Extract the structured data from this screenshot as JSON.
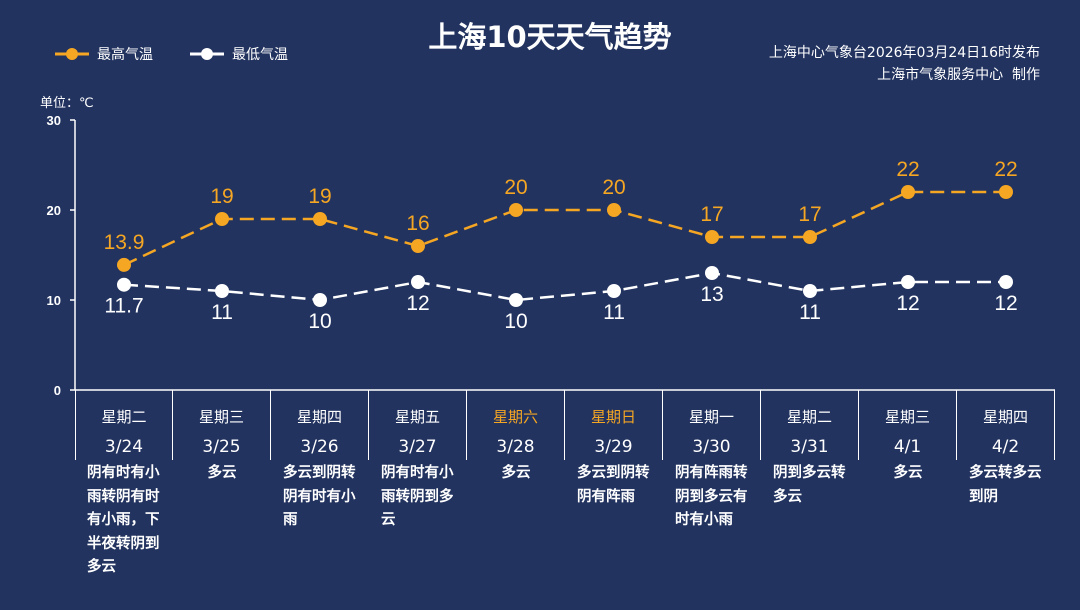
{
  "title": "上海10天天气趋势",
  "source_line1": "上海中心气象台2026年03月24日16时发布",
  "source_line2": "上海市气象服务中心  制作",
  "unit_label": "单位：℃",
  "colors": {
    "background": "#22335f",
    "high": "#f5a623",
    "low": "#ffffff",
    "weekend": "#f5a623"
  },
  "chart_data": {
    "type": "line",
    "title": "上海10天天气趋势",
    "ylim": [
      0,
      30
    ],
    "yticks": [
      0,
      10,
      20,
      30
    ],
    "ylabel": "单位：℃",
    "legend_position": "top-left",
    "grid": false,
    "categories": [
      "3/24",
      "3/25",
      "3/26",
      "3/27",
      "3/28",
      "3/29",
      "3/30",
      "3/31",
      "4/1",
      "4/2"
    ],
    "series": [
      {
        "name": "最高气温",
        "color": "#f5a623",
        "values": [
          13.9,
          19,
          19,
          16,
          20,
          20,
          17,
          17,
          22,
          22
        ]
      },
      {
        "name": "最低气温",
        "color": "#ffffff",
        "values": [
          11.7,
          11,
          10,
          12,
          10,
          11,
          13,
          11,
          12,
          12
        ]
      }
    ]
  },
  "days": [
    {
      "weekday": "星期二",
      "date": "3/24",
      "weekend": false,
      "weather": "阴有时有小雨转阴有时有小雨，下半夜转阴到多云"
    },
    {
      "weekday": "星期三",
      "date": "3/25",
      "weekend": false,
      "weather": "多云"
    },
    {
      "weekday": "星期四",
      "date": "3/26",
      "weekend": false,
      "weather": "多云到阴转阴有时有小雨"
    },
    {
      "weekday": "星期五",
      "date": "3/27",
      "weekend": false,
      "weather": "阴有时有小雨转阴到多云"
    },
    {
      "weekday": "星期六",
      "date": "3/28",
      "weekend": true,
      "weather": "多云"
    },
    {
      "weekday": "星期日",
      "date": "3/29",
      "weekend": true,
      "weather": "多云到阴转阴有阵雨"
    },
    {
      "weekday": "星期一",
      "date": "3/30",
      "weekend": false,
      "weather": "阴有阵雨转阴到多云有时有小雨"
    },
    {
      "weekday": "星期二",
      "date": "3/31",
      "weekend": false,
      "weather": "阴到多云转多云"
    },
    {
      "weekday": "星期三",
      "date": "4/1",
      "weekend": false,
      "weather": "多云"
    },
    {
      "weekday": "星期四",
      "date": "4/2",
      "weekend": false,
      "weather": "多云转多云到阴"
    }
  ]
}
